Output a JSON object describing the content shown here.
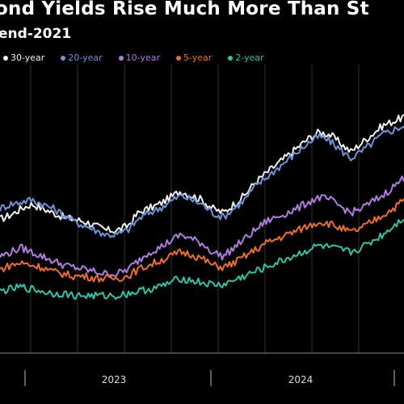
{
  "title": "ond Yields Rise Much More Than St",
  "subtitle": "end-2021",
  "chart_data": {
    "type": "line",
    "title": "ond Yields Rise Much More Than St",
    "subtitle": "end-2021",
    "xlabel": "",
    "ylabel": "",
    "x_ticks": [
      "2023",
      "2024"
    ],
    "legend_position": "top-left",
    "grid": "vertical",
    "series": [
      {
        "name": "30-year",
        "color": "#f2f2f2",
        "values": [
          0.55,
          0.57,
          0.6,
          0.62,
          0.6,
          0.58,
          0.56,
          0.55,
          0.54,
          0.52,
          0.5,
          0.5,
          0.52,
          0.58,
          0.6,
          0.62,
          0.65,
          0.68,
          0.66,
          0.64,
          0.6,
          0.58,
          0.62,
          0.66,
          0.72,
          0.76,
          0.8,
          0.84,
          0.88,
          0.92,
          0.95,
          0.94,
          0.9,
          0.86,
          0.9,
          0.94,
          0.98,
          1.0,
          1.02
        ]
      },
      {
        "name": "20-year",
        "color": "#6f94d8",
        "values": [
          0.6,
          0.62,
          0.63,
          0.64,
          0.62,
          0.6,
          0.57,
          0.54,
          0.52,
          0.5,
          0.48,
          0.48,
          0.5,
          0.55,
          0.58,
          0.6,
          0.63,
          0.66,
          0.64,
          0.62,
          0.58,
          0.56,
          0.6,
          0.64,
          0.7,
          0.74,
          0.78,
          0.82,
          0.86,
          0.9,
          0.93,
          0.91,
          0.87,
          0.83,
          0.86,
          0.9,
          0.94,
          0.96,
          0.98
        ]
      },
      {
        "name": "10-year",
        "color": "#b07de0",
        "values": [
          0.38,
          0.4,
          0.42,
          0.4,
          0.38,
          0.36,
          0.34,
          0.33,
          0.32,
          0.31,
          0.3,
          0.3,
          0.32,
          0.36,
          0.4,
          0.42,
          0.45,
          0.48,
          0.46,
          0.44,
          0.4,
          0.38,
          0.42,
          0.46,
          0.5,
          0.54,
          0.56,
          0.58,
          0.6,
          0.63,
          0.65,
          0.64,
          0.61,
          0.58,
          0.6,
          0.63,
          0.66,
          0.7,
          0.74
        ]
      },
      {
        "name": "5-year",
        "color": "#ee6f2d",
        "values": [
          0.32,
          0.34,
          0.35,
          0.34,
          0.33,
          0.31,
          0.3,
          0.29,
          0.29,
          0.28,
          0.28,
          0.28,
          0.29,
          0.32,
          0.34,
          0.36,
          0.38,
          0.4,
          0.39,
          0.37,
          0.34,
          0.33,
          0.35,
          0.38,
          0.41,
          0.44,
          0.46,
          0.48,
          0.5,
          0.52,
          0.54,
          0.53,
          0.51,
          0.49,
          0.51,
          0.54,
          0.57,
          0.6,
          0.64
        ]
      },
      {
        "name": "2-year",
        "color": "#2fc4a8",
        "values": [
          0.22,
          0.23,
          0.24,
          0.23,
          0.22,
          0.21,
          0.21,
          0.2,
          0.2,
          0.2,
          0.2,
          0.2,
          0.21,
          0.22,
          0.23,
          0.24,
          0.26,
          0.28,
          0.27,
          0.26,
          0.25,
          0.25,
          0.27,
          0.29,
          0.31,
          0.33,
          0.35,
          0.37,
          0.39,
          0.41,
          0.43,
          0.42,
          0.41,
          0.4,
          0.42,
          0.45,
          0.48,
          0.52,
          0.56
        ]
      }
    ]
  }
}
